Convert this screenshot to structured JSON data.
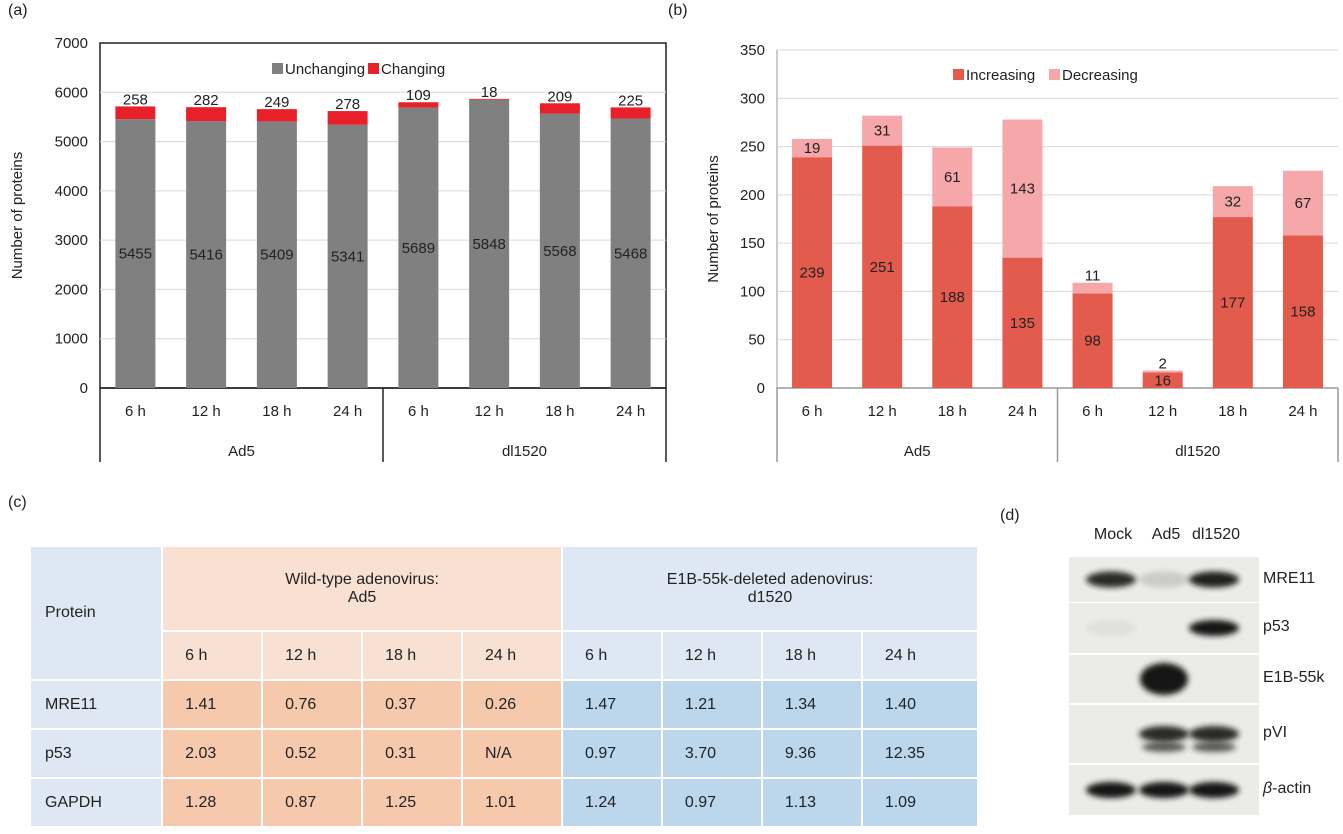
{
  "panels": {
    "a": "(a)",
    "b": "(b)",
    "c": "(c)",
    "d": "(d)"
  },
  "chart_data": [
    {
      "type": "bar",
      "stacked": true,
      "ylabel": "Number of proteins",
      "ylim": [
        0,
        7000
      ],
      "yticks": [
        0,
        1000,
        2000,
        3000,
        4000,
        5000,
        6000,
        7000
      ],
      "categories": [
        "6 h",
        "12 h",
        "18 h",
        "24 h",
        "6 h",
        "12 h",
        "18 h",
        "24 h"
      ],
      "groups": [
        {
          "name": "Ad5",
          "span": 4
        },
        {
          "name": "dl1520",
          "span": 4
        }
      ],
      "series": [
        {
          "name": "Unchanging",
          "color": "#808080",
          "values": [
            5455,
            5416,
            5409,
            5341,
            5689,
            5848,
            5568,
            5468
          ]
        },
        {
          "name": "Changing",
          "color": "#e8202a",
          "values": [
            258,
            282,
            249,
            278,
            109,
            18,
            209,
            225
          ]
        }
      ],
      "legend": "top-center"
    },
    {
      "type": "bar",
      "stacked": true,
      "ylabel": "Number of proteins",
      "ylim": [
        0,
        350
      ],
      "yticks": [
        0,
        50,
        100,
        150,
        200,
        250,
        300,
        350
      ],
      "categories": [
        "6 h",
        "12 h",
        "18 h",
        "24 h",
        "6 h",
        "12 h",
        "18 h",
        "24 h"
      ],
      "groups": [
        {
          "name": "Ad5",
          "span": 4
        },
        {
          "name": "dl1520",
          "span": 4
        }
      ],
      "series": [
        {
          "name": "Increasing",
          "color": "#e25b4c",
          "values": [
            239,
            251,
            188,
            135,
            98,
            16,
            177,
            158
          ]
        },
        {
          "name": "Decreasing",
          "color": "#f5a7a9",
          "values": [
            19,
            31,
            61,
            143,
            11,
            2,
            32,
            67
          ]
        }
      ],
      "legend": "top-center"
    }
  ],
  "table": {
    "protein_header": "Protein",
    "group1_line1": "Wild-type adenovirus:",
    "group1_line2": "Ad5",
    "group2_line1": "E1B-55k-deleted adenovirus:",
    "group2_line2": "d1520",
    "times": [
      "6 h",
      "12 h",
      "18 h",
      "24 h",
      "6 h",
      "12 h",
      "18 h",
      "24 h"
    ],
    "rows": [
      {
        "name": "MRE11",
        "values": [
          "1.41",
          "0.76",
          "0.37",
          "0.26",
          "1.47",
          "1.21",
          "1.34",
          "1.40"
        ]
      },
      {
        "name": "p53",
        "values": [
          "2.03",
          "0.52",
          "0.31",
          "N/A",
          "0.97",
          "3.70",
          "9.36",
          "12.35"
        ]
      },
      {
        "name": "GAPDH",
        "values": [
          "1.28",
          "0.87",
          "1.25",
          "1.01",
          "1.24",
          "0.97",
          "1.13",
          "1.09"
        ]
      }
    ]
  },
  "blot": {
    "lanes": [
      "Mock",
      "Ad5",
      "dl1520"
    ],
    "rows": [
      {
        "label": "MRE11",
        "bands": [
          0.9,
          0.15,
          0.95
        ]
      },
      {
        "label": "p53",
        "bands": [
          0.05,
          0,
          1
        ]
      },
      {
        "label": "E1B-55k",
        "bands": [
          0,
          1,
          0
        ]
      },
      {
        "label": "pVI",
        "bands": [
          0,
          0.9,
          0.9
        ]
      },
      {
        "label_prefix": "β",
        "label_suffix": "-actin",
        "bands": [
          1,
          1,
          1
        ]
      }
    ]
  }
}
